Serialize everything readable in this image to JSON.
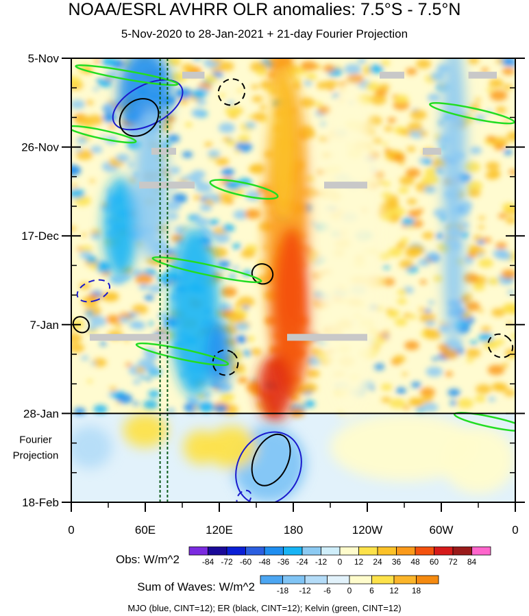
{
  "title": "NOAA/ESRL AVHRR OLR anomalies: 7.5°S - 7.5°N",
  "subtitle": "5-Nov-2020 to 28-Jan-2021 + 21-day Fourier Projection",
  "chart_data": {
    "type": "heatmap",
    "description_axes": "Hovmoller: longitude (x) vs time (y)",
    "x_ticks": [
      "0",
      "60E",
      "120E",
      "180",
      "120W",
      "60W",
      "0"
    ],
    "x_tick_lon": [
      0,
      60,
      120,
      180,
      240,
      300,
      360
    ],
    "y_ticks": [
      "5-Nov",
      "26-Nov",
      "17-Dec",
      "7-Jan",
      "28-Jan",
      "18-Feb"
    ],
    "y_tick_day": [
      0,
      21,
      42,
      63,
      84,
      105
    ],
    "projection_label": [
      "Fourier",
      "Projection"
    ],
    "projection_start_day": 84,
    "obs_colorbar": {
      "title": "Obs: W/m^2",
      "labels": [
        "-84",
        "-72",
        "-60",
        "-48",
        "-36",
        "-24",
        "-12",
        "0",
        "12",
        "24",
        "36",
        "48",
        "60",
        "72",
        "84"
      ],
      "colors": [
        "#7b2be0",
        "#1a0a99",
        "#0a1fd6",
        "#2b5fe0",
        "#1f8ef0",
        "#17b4f5",
        "#8ccaf2",
        "#cfeefa",
        "#fffccc",
        "#fde24a",
        "#fcc228",
        "#fb9a1a",
        "#f4520e",
        "#d61a1a",
        "#9a1a1a",
        "#ff66cc"
      ]
    },
    "waves_colorbar": {
      "title": "Sum of Waves: W/m^2",
      "labels": [
        "-18",
        "-12",
        "-6",
        "0",
        "6",
        "12",
        "18"
      ],
      "colors": [
        "#4ca6f2",
        "#80c4f5",
        "#b4dcf8",
        "#e2f2fb",
        "#fffccc",
        "#fde24a",
        "#fbb52a",
        "#f58a10"
      ]
    },
    "series": [
      {
        "name": "MJO",
        "color": "#1a1acc",
        "cint": 12,
        "contours": [
          {
            "lon": 62,
            "day": 11,
            "rx": 16,
            "ry": 9,
            "rot": 62
          },
          {
            "lon": 18,
            "day": 55,
            "rx": 8,
            "ry": 4,
            "rot": 70
          },
          {
            "lon": 160,
            "day": 97,
            "rx": 25,
            "ry": 9,
            "rot": 30
          },
          {
            "lon": 140,
            "day": 104,
            "rx": 5,
            "ry": 2,
            "rot": 40
          }
        ]
      },
      {
        "name": "ER",
        "color": "#000000",
        "cint": 12,
        "contours": [
          {
            "lon": 55,
            "day": 14,
            "rx": 17,
            "ry": 4,
            "rot": -40
          },
          {
            "lon": 130,
            "day": 8,
            "rx": 11,
            "ry": 3,
            "rot": -40
          },
          {
            "lon": 155,
            "day": 51,
            "rx": 8,
            "ry": 2.5,
            "rot": -62
          },
          {
            "lon": 125,
            "day": 72,
            "rx": 10,
            "ry": 3,
            "rot": -50
          },
          {
            "lon": 162,
            "day": 95,
            "rx": 22,
            "ry": 4,
            "rot": -65
          },
          {
            "lon": 348,
            "day": 68,
            "rx": 9,
            "ry": 3,
            "rot": -55
          },
          {
            "lon": 8,
            "day": 63,
            "rx": 6,
            "ry": 2,
            "rot": -45
          }
        ]
      },
      {
        "name": "Kelvin",
        "color": "#22dd22",
        "cint": 12,
        "contours": [
          {
            "lon": 45,
            "day": 4,
            "rx": 42,
            "ry": 1,
            "rot": 10
          },
          {
            "lon": 25,
            "day": 18,
            "rx": 28,
            "ry": 1,
            "rot": 12
          },
          {
            "lon": 140,
            "day": 31,
            "rx": 28,
            "ry": 1.5,
            "rot": 12
          },
          {
            "lon": 110,
            "day": 50,
            "rx": 45,
            "ry": 1.2,
            "rot": 12
          },
          {
            "lon": 325,
            "day": 13,
            "rx": 35,
            "ry": 1.2,
            "rot": 12
          },
          {
            "lon": 90,
            "day": 70,
            "rx": 38,
            "ry": 1.2,
            "rot": 12
          },
          {
            "lon": 340,
            "day": 86,
            "rx": 30,
            "ry": 1.2,
            "rot": 12
          }
        ]
      }
    ],
    "missing_data_bands": [
      {
        "lon0": 90,
        "lon1": 108,
        "day": 4
      },
      {
        "lon0": 250,
        "lon1": 270,
        "day": 4
      },
      {
        "lon0": 322,
        "lon1": 345,
        "day": 4
      },
      {
        "lon0": 65,
        "lon1": 85,
        "day": 22
      },
      {
        "lon0": 285,
        "lon1": 300,
        "day": 22
      },
      {
        "lon0": 55,
        "lon1": 100,
        "day": 30
      },
      {
        "lon0": 205,
        "lon1": 240,
        "day": 30
      },
      {
        "lon0": 15,
        "lon1": 80,
        "day": 66
      },
      {
        "lon0": 175,
        "lon1": 240,
        "day": 66
      }
    ],
    "reference_lines_lon": [
      72,
      78
    ],
    "footer_label": "MJO (blue, CINT=12); ER (black, CINT=12); Kelvin (green, CINT=12)"
  }
}
